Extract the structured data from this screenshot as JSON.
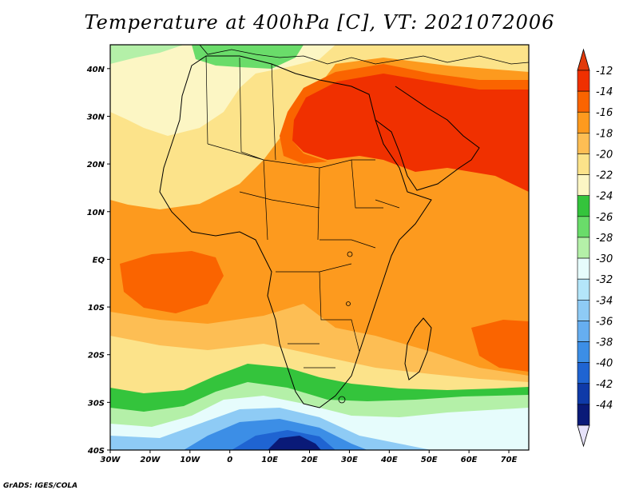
{
  "title": "Temperature at 400hPa [C], VT: 2021072006",
  "credit": "GrADS: IGES/COLA",
  "map": {
    "lon_range": [
      -30,
      75
    ],
    "lat_range": [
      -40,
      45
    ],
    "lat_ticks": [
      {
        "lat": 40,
        "label": "40N"
      },
      {
        "lat": 30,
        "label": "30N"
      },
      {
        "lat": 20,
        "label": "20N"
      },
      {
        "lat": 10,
        "label": "10N"
      },
      {
        "lat": 0,
        "label": "EQ"
      },
      {
        "lat": -10,
        "label": "10S"
      },
      {
        "lat": -20,
        "label": "20S"
      },
      {
        "lat": -30,
        "label": "30S"
      },
      {
        "lat": -40,
        "label": "40S"
      }
    ],
    "lon_ticks": [
      {
        "lon": -30,
        "label": "30W"
      },
      {
        "lon": -20,
        "label": "20W"
      },
      {
        "lon": -10,
        "label": "10W"
      },
      {
        "lon": 0,
        "label": "0"
      },
      {
        "lon": 10,
        "label": "10E"
      },
      {
        "lon": 20,
        "label": "20E"
      },
      {
        "lon": 30,
        "label": "30E"
      },
      {
        "lon": 40,
        "label": "40E"
      },
      {
        "lon": 50,
        "label": "50E"
      },
      {
        "lon": 60,
        "label": "60E"
      },
      {
        "lon": 70,
        "label": "70E"
      }
    ]
  },
  "colorbar": {
    "bins": [
      {
        "color": "#f03000",
        "label": "-12"
      },
      {
        "color": "#fa6400",
        "label": "-14"
      },
      {
        "color": "#fd9a1e",
        "label": "-16"
      },
      {
        "color": "#fdbe54",
        "label": "-18"
      },
      {
        "color": "#fce38a",
        "label": "-20"
      },
      {
        "color": "#fcf6c4",
        "label": "-22"
      },
      {
        "color": "#34c43c",
        "label": "-24"
      },
      {
        "color": "#6adc6a",
        "label": "-26"
      },
      {
        "color": "#b4f0a8",
        "label": "-28"
      },
      {
        "color": "#e6fcfc",
        "label": "-30"
      },
      {
        "color": "#b4e6fa",
        "label": "-32"
      },
      {
        "color": "#8ecbf5",
        "label": "-34"
      },
      {
        "color": "#66aef0",
        "label": "-36"
      },
      {
        "color": "#3c8ee6",
        "label": "-38"
      },
      {
        "color": "#1f64d2",
        "label": "-40"
      },
      {
        "color": "#0f3aa8",
        "label": "-42"
      },
      {
        "color": "#0a1a78",
        "label": "-44"
      }
    ],
    "top_arrow_color": "#e23a0a",
    "bottom_arrow_color": "#e6e2fa"
  }
}
